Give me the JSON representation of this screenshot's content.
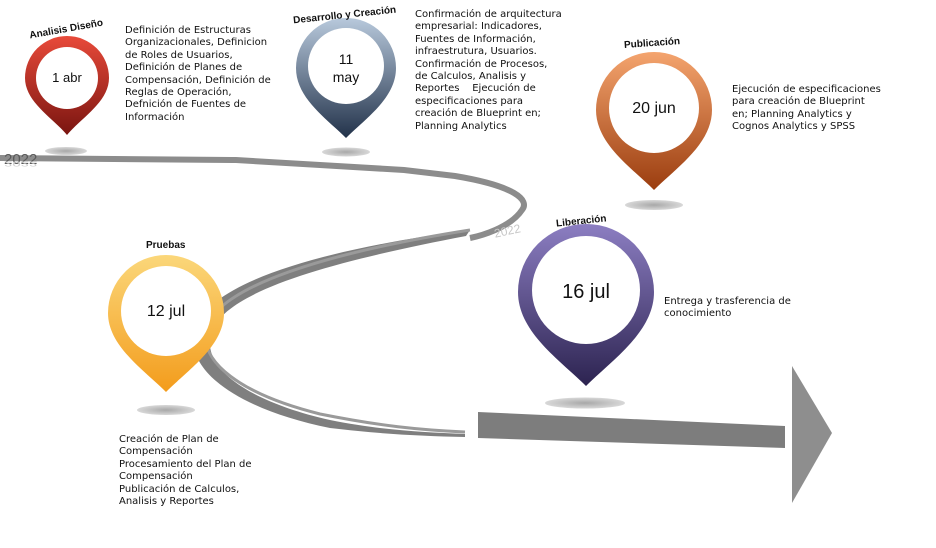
{
  "year_label": "2022",
  "colors": {
    "road": "#8c8c8c",
    "road_dark": "#7a7a7a",
    "shadow": "#b8b8b8",
    "pin_analisis": [
      "#e84a3a",
      "#7a1510"
    ],
    "pin_desarrollo": [
      "#b8c9dc",
      "#22324a"
    ],
    "pin_publicacion": [
      "#f4a46e",
      "#9b3d0f"
    ],
    "pin_pruebas": [
      "#fbd77a",
      "#f39c1c"
    ],
    "pin_liberacion": [
      "#8c7ec2",
      "#2c2350"
    ]
  },
  "stages": [
    {
      "id": "analisis",
      "label": "Analisis Diseño",
      "date": "1 abr",
      "icon": "map-pin-icon",
      "description": [
        "Definición de Estructuras",
        "Organizacionales, Definicion",
        "de Roles de Usuarios,",
        "Definición de Planes de",
        "Compensación, Definición de",
        "Reglas de Operación,",
        "Defnición de Fuentes de",
        "Información"
      ]
    },
    {
      "id": "desarrollo",
      "label": "Desarrollo y Creación",
      "date": "11 may",
      "icon": "map-pin-icon",
      "description": [
        "Confirmación de arquitectura",
        "empresarial: Indicadores,",
        "Fuentes de Información,",
        "infraestrutura, Usuarios.",
        "Confirmación de Procesos,",
        "de Calculos, Analisis y",
        "Reportes    Ejecución de",
        "especificaciones para",
        "creación de Blueprint en;",
        "Planning Analytics"
      ]
    },
    {
      "id": "publicacion",
      "label": "Publicación",
      "date": "20 jun",
      "icon": "map-pin-icon",
      "description": [
        "Ejecución de especificaciones",
        "para creación de Blueprint",
        "en; Planning Analytics y",
        "Cognos Analytics y SPSS"
      ]
    },
    {
      "id": "pruebas",
      "label": "Pruebas",
      "date": "12 jul",
      "icon": "map-pin-icon",
      "description": [
        "Creación de Plan de",
        "Compensación",
        "Procesamiento del Plan de",
        "Compensación",
        "Publicación de Calculos,",
        "Analisis y Reportes"
      ]
    },
    {
      "id": "liberacion",
      "label": "Liberación",
      "date": "16 jul",
      "icon": "map-pin-icon",
      "description": [
        "Entrega y trasferencia de",
        "conocimiento"
      ]
    }
  ]
}
